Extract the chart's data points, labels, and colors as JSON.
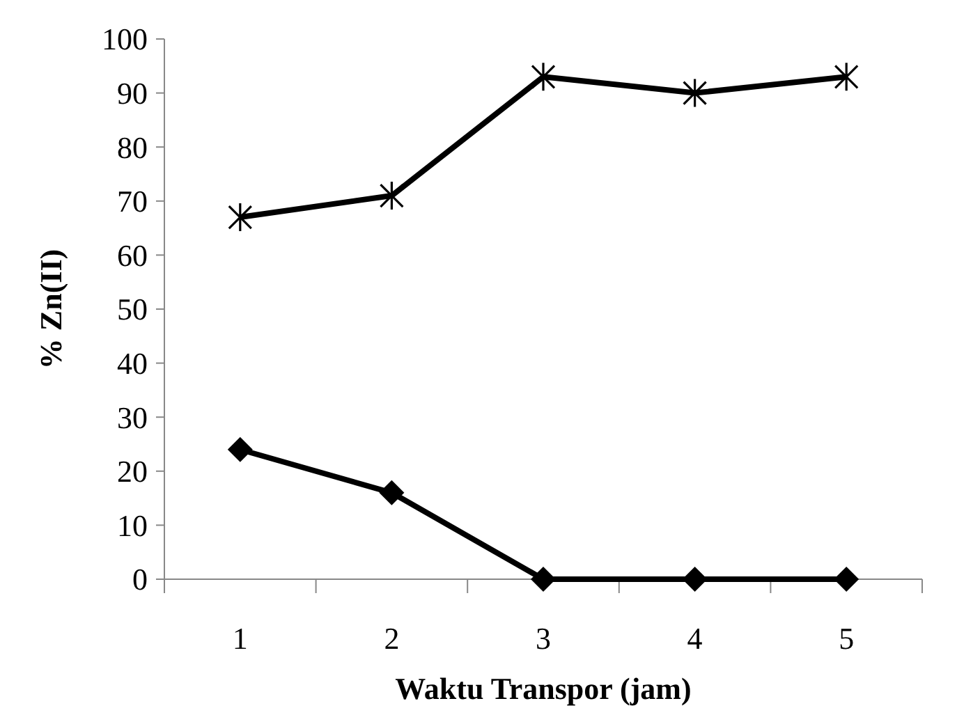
{
  "chart_data": {
    "type": "line",
    "xlabel": "Waktu Transpor (jam)",
    "ylabel": "% Zn(II)",
    "categories": [
      "1",
      "2",
      "3",
      "4",
      "5"
    ],
    "series": [
      {
        "color": "#000000",
        "marker": "cross",
        "values": [
          67,
          71,
          93,
          90,
          93
        ]
      },
      {
        "color": "#000000",
        "marker": "diamond",
        "values": [
          24,
          16,
          0,
          0,
          0
        ]
      }
    ],
    "ylim": [
      0,
      100
    ],
    "yticks": [
      0,
      10,
      20,
      30,
      40,
      50,
      60,
      70,
      80,
      90,
      100
    ],
    "grid": false,
    "line_style": "solid"
  }
}
